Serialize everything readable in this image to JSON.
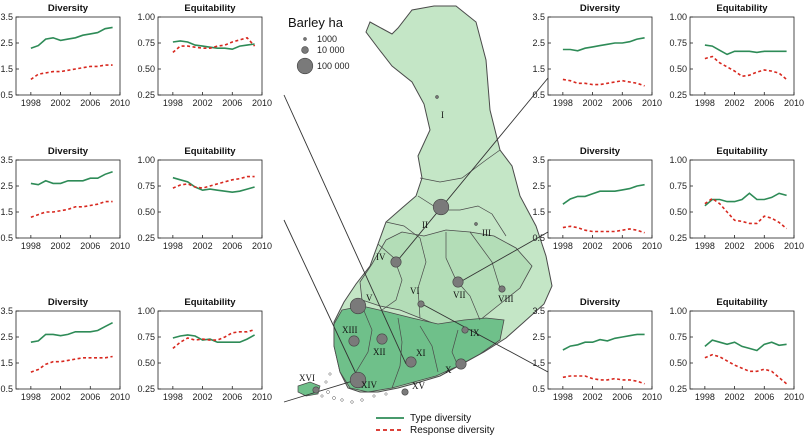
{
  "colors": {
    "type_line": "#2e8b57",
    "response_line": "#d8281f",
    "map_light": "#c4e6c6",
    "map_mid": "#9fd4a4",
    "map_dark": "#6fc08a",
    "map_border": "#4a4a4a",
    "dot": "#7a7a7a",
    "leader": "#333333"
  },
  "map": {
    "size_legend": {
      "title": "Barley ha",
      "items": [
        {
          "label": "1000"
        },
        {
          "label": "10 000"
        },
        {
          "label": "100 000"
        }
      ]
    },
    "regions": [
      {
        "label": "I",
        "dot": "tiny"
      },
      {
        "label": "II",
        "dot": "large"
      },
      {
        "label": "III",
        "dot": "tiny"
      },
      {
        "label": "IV",
        "dot": "medium"
      },
      {
        "label": "V",
        "dot": "large"
      },
      {
        "label": "VI",
        "dot": "small"
      },
      {
        "label": "VII",
        "dot": "medium"
      },
      {
        "label": "VIII",
        "dot": "small"
      },
      {
        "label": "IX",
        "dot": "small"
      },
      {
        "label": "X",
        "dot": "medium"
      },
      {
        "label": "XI",
        "dot": "medium"
      },
      {
        "label": "XII",
        "dot": "medium"
      },
      {
        "label": "XIII",
        "dot": "medium"
      },
      {
        "label": "XIV",
        "dot": "large"
      },
      {
        "label": "XV",
        "dot": "small"
      },
      {
        "label": "XVI",
        "dot": "small"
      }
    ]
  },
  "legend": {
    "type": "Type diversity",
    "response": "Response diversity"
  },
  "chart_data": [
    {
      "type": "line",
      "title": "Diversity",
      "ylim": [
        0.5,
        3.5
      ],
      "yticks": [
        "3.5",
        "2.5",
        "1.5",
        "0.5"
      ],
      "xticks": [
        "1998",
        "2002",
        "2006",
        "2010"
      ],
      "series": [
        {
          "x": [
            1998,
            1999,
            2000,
            2001,
            2002,
            2003,
            2004,
            2005,
            2006,
            2007,
            2008,
            2009
          ],
          "values": [
            2.3,
            2.4,
            2.65,
            2.7,
            2.6,
            2.65,
            2.7,
            2.8,
            2.85,
            2.9,
            3.05,
            3.1
          ]
        },
        {
          "x": [
            1998,
            1999,
            2000,
            2001,
            2002,
            2003,
            2004,
            2005,
            2006,
            2007,
            2008,
            2009
          ],
          "values": [
            1.1,
            1.3,
            1.35,
            1.4,
            1.4,
            1.45,
            1.5,
            1.55,
            1.6,
            1.6,
            1.65,
            1.65
          ]
        }
      ]
    },
    {
      "type": "line",
      "title": "Equitability",
      "ylim": [
        0.25,
        1.0
      ],
      "yticks": [
        "1.00",
        "0.75",
        "0.50",
        "0.25"
      ],
      "xticks": [
        "1998",
        "2002",
        "2006",
        "2010"
      ],
      "series": [
        {
          "x": [
            1998,
            1999,
            2000,
            2001,
            2002,
            2003,
            2004,
            2005,
            2006,
            2007,
            2008,
            2009
          ],
          "values": [
            0.76,
            0.77,
            0.76,
            0.73,
            0.72,
            0.71,
            0.7,
            0.7,
            0.69,
            0.72,
            0.73,
            0.74
          ]
        },
        {
          "x": [
            1998,
            1999,
            2000,
            2001,
            2002,
            2003,
            2004,
            2005,
            2006,
            2007,
            2008,
            2009
          ],
          "values": [
            0.66,
            0.72,
            0.72,
            0.71,
            0.7,
            0.7,
            0.72,
            0.73,
            0.76,
            0.78,
            0.8,
            0.72
          ]
        }
      ]
    },
    {
      "type": "line",
      "title": "Diversity",
      "ylim": [
        0.5,
        3.5
      ],
      "yticks": [
        "3.5",
        "2.5",
        "1.5",
        "0.5"
      ],
      "xticks": [
        "1998",
        "2002",
        "2006",
        "2010"
      ],
      "series": [
        {
          "x": [
            1998,
            1999,
            2000,
            2001,
            2002,
            2003,
            2004,
            2005,
            2006,
            2007,
            2008,
            2009
          ],
          "values": [
            2.6,
            2.55,
            2.7,
            2.6,
            2.6,
            2.7,
            2.7,
            2.7,
            2.8,
            2.8,
            2.95,
            3.05
          ]
        },
        {
          "x": [
            1998,
            1999,
            2000,
            2001,
            2002,
            2003,
            2004,
            2005,
            2006,
            2007,
            2008,
            2009
          ],
          "values": [
            1.3,
            1.4,
            1.5,
            1.5,
            1.55,
            1.6,
            1.7,
            1.7,
            1.75,
            1.8,
            1.9,
            1.9
          ]
        }
      ]
    },
    {
      "type": "line",
      "title": "Equitability",
      "ylim": [
        0.25,
        1.0
      ],
      "yticks": [
        "1.00",
        "0.75",
        "0.50",
        "0.25"
      ],
      "xticks": [
        "1998",
        "2002",
        "2006",
        "2010"
      ],
      "series": [
        {
          "x": [
            1998,
            1999,
            2000,
            2001,
            2002,
            2003,
            2004,
            2005,
            2006,
            2007,
            2008,
            2009
          ],
          "values": [
            0.83,
            0.81,
            0.79,
            0.74,
            0.71,
            0.72,
            0.71,
            0.7,
            0.69,
            0.7,
            0.72,
            0.74
          ]
        },
        {
          "x": [
            1998,
            1999,
            2000,
            2001,
            2002,
            2003,
            2004,
            2005,
            2006,
            2007,
            2008,
            2009
          ],
          "values": [
            0.73,
            0.76,
            0.77,
            0.74,
            0.73,
            0.75,
            0.77,
            0.79,
            0.81,
            0.82,
            0.84,
            0.84
          ]
        }
      ]
    },
    {
      "type": "line",
      "title": "Diversity",
      "ylim": [
        0.5,
        3.5
      ],
      "yticks": [
        "3.5",
        "2.5",
        "1.5",
        "0.5"
      ],
      "xticks": [
        "1998",
        "2002",
        "2006",
        "2010"
      ],
      "series": [
        {
          "x": [
            1998,
            1999,
            2000,
            2001,
            2002,
            2003,
            2004,
            2005,
            2006,
            2007,
            2008,
            2009
          ],
          "values": [
            2.3,
            2.35,
            2.6,
            2.6,
            2.55,
            2.6,
            2.7,
            2.7,
            2.7,
            2.75,
            2.9,
            3.05
          ]
        },
        {
          "x": [
            1998,
            1999,
            2000,
            2001,
            2002,
            2003,
            2004,
            2005,
            2006,
            2007,
            2008,
            2009
          ],
          "values": [
            1.15,
            1.25,
            1.45,
            1.55,
            1.55,
            1.6,
            1.65,
            1.7,
            1.7,
            1.7,
            1.7,
            1.75
          ]
        }
      ]
    },
    {
      "type": "line",
      "title": "Equitability",
      "ylim": [
        0.25,
        1.0
      ],
      "yticks": [
        "1.00",
        "0.75",
        "0.50",
        "0.25"
      ],
      "xticks": [
        "1998",
        "2002",
        "2006",
        "2010"
      ],
      "series": [
        {
          "x": [
            1998,
            1999,
            2000,
            2001,
            2002,
            2003,
            2004,
            2005,
            2006,
            2007,
            2008,
            2009
          ],
          "values": [
            0.74,
            0.76,
            0.77,
            0.76,
            0.72,
            0.73,
            0.7,
            0.7,
            0.7,
            0.7,
            0.73,
            0.77
          ]
        },
        {
          "x": [
            1998,
            1999,
            2000,
            2001,
            2002,
            2003,
            2004,
            2005,
            2006,
            2007,
            2008,
            2009
          ],
          "values": [
            0.64,
            0.7,
            0.74,
            0.72,
            0.73,
            0.72,
            0.72,
            0.75,
            0.79,
            0.8,
            0.8,
            0.82
          ]
        }
      ]
    },
    {
      "type": "line",
      "title": "Diversity",
      "ylim": [
        0.5,
        3.5
      ],
      "yticks": [
        "3.5",
        "2.5",
        "1.5",
        "0.5"
      ],
      "xticks": [
        "1998",
        "2002",
        "2006",
        "2010"
      ],
      "series": [
        {
          "x": [
            1998,
            1999,
            2000,
            2001,
            2002,
            2003,
            2004,
            2005,
            2006,
            2007,
            2008,
            2009
          ],
          "values": [
            2.25,
            2.25,
            2.2,
            2.3,
            2.35,
            2.4,
            2.45,
            2.5,
            2.5,
            2.55,
            2.65,
            2.7
          ]
        },
        {
          "x": [
            1998,
            1999,
            2000,
            2001,
            2002,
            2003,
            2004,
            2005,
            2006,
            2007,
            2008,
            2009
          ],
          "values": [
            1.1,
            1.05,
            0.95,
            0.95,
            0.9,
            0.9,
            0.95,
            1.0,
            1.05,
            1.0,
            0.95,
            0.85
          ]
        }
      ]
    },
    {
      "type": "line",
      "title": "Equitability",
      "ylim": [
        0.25,
        1.0
      ],
      "yticks": [
        "1.00",
        "0.75",
        "0.50",
        "0.25"
      ],
      "xticks": [
        "1998",
        "2002",
        "2006",
        "2010"
      ],
      "series": [
        {
          "x": [
            1998,
            1999,
            2000,
            2001,
            2002,
            2003,
            2004,
            2005,
            2006,
            2007,
            2008,
            2009
          ],
          "values": [
            0.73,
            0.72,
            0.68,
            0.64,
            0.67,
            0.67,
            0.67,
            0.66,
            0.67,
            0.67,
            0.67,
            0.67
          ]
        },
        {
          "x": [
            1998,
            1999,
            2000,
            2001,
            2002,
            2003,
            2004,
            2005,
            2006,
            2007,
            2008,
            2009
          ],
          "values": [
            0.6,
            0.62,
            0.56,
            0.52,
            0.48,
            0.43,
            0.44,
            0.47,
            0.49,
            0.48,
            0.46,
            0.4
          ]
        }
      ]
    },
    {
      "type": "line",
      "title": "Diversity",
      "ylim": [
        0.5,
        3.5
      ],
      "yticks": [
        "3.5",
        "2.5",
        "1.5",
        "0.5"
      ],
      "xticks": [
        "1998",
        "2002",
        "2006",
        "2010"
      ],
      "series": [
        {
          "x": [
            1998,
            1999,
            2000,
            2001,
            2002,
            2003,
            2004,
            2005,
            2006,
            2007,
            2008,
            2009
          ],
          "values": [
            1.8,
            2.0,
            2.1,
            2.1,
            2.2,
            2.3,
            2.3,
            2.3,
            2.35,
            2.4,
            2.5,
            2.55
          ]
        },
        {
          "x": [
            1998,
            1999,
            2000,
            2001,
            2002,
            2003,
            2004,
            2005,
            2006,
            2007,
            2008,
            2009
          ],
          "values": [
            0.9,
            0.95,
            0.9,
            0.8,
            0.75,
            0.75,
            0.75,
            0.75,
            0.8,
            0.85,
            0.8,
            0.7
          ]
        }
      ]
    },
    {
      "type": "line",
      "title": "Equitability",
      "ylim": [
        0.25,
        1.0
      ],
      "yticks": [
        "1.00",
        "0.75",
        "0.50",
        "0.25"
      ],
      "xticks": [
        "1998",
        "2002",
        "2006",
        "2010"
      ],
      "series": [
        {
          "x": [
            1998,
            1999,
            2000,
            2001,
            2002,
            2003,
            2004,
            2005,
            2006,
            2007,
            2008,
            2009
          ],
          "values": [
            0.56,
            0.62,
            0.62,
            0.6,
            0.6,
            0.62,
            0.68,
            0.62,
            0.62,
            0.64,
            0.68,
            0.66
          ]
        },
        {
          "x": [
            1998,
            1999,
            2000,
            2001,
            2002,
            2003,
            2004,
            2005,
            2006,
            2007,
            2008,
            2009
          ],
          "values": [
            0.58,
            0.63,
            0.58,
            0.5,
            0.42,
            0.41,
            0.39,
            0.39,
            0.46,
            0.44,
            0.4,
            0.34
          ]
        }
      ]
    },
    {
      "type": "line",
      "title": "Diversity",
      "ylim": [
        0.5,
        3.5
      ],
      "yticks": [
        "3.5",
        "2.5",
        "1.5",
        "0.5"
      ],
      "xticks": [
        "1998",
        "2002",
        "2006",
        "2010"
      ],
      "series": [
        {
          "x": [
            1998,
            1999,
            2000,
            2001,
            2002,
            2003,
            2004,
            2005,
            2006,
            2007,
            2008,
            2009
          ],
          "values": [
            2.0,
            2.15,
            2.2,
            2.3,
            2.3,
            2.4,
            2.35,
            2.45,
            2.5,
            2.55,
            2.6,
            2.6
          ]
        },
        {
          "x": [
            1998,
            1999,
            2000,
            2001,
            2002,
            2003,
            2004,
            2005,
            2006,
            2007,
            2008,
            2009
          ],
          "values": [
            0.95,
            1.0,
            1.0,
            1.0,
            0.9,
            0.85,
            0.85,
            0.9,
            0.85,
            0.85,
            0.8,
            0.7
          ]
        }
      ]
    },
    {
      "type": "line",
      "title": "Equitability",
      "ylim": [
        0.25,
        1.0
      ],
      "yticks": [
        "1.00",
        "0.75",
        "0.50",
        "0.25"
      ],
      "xticks": [
        "1998",
        "2002",
        "2006",
        "2010"
      ],
      "series": [
        {
          "x": [
            1998,
            1999,
            2000,
            2001,
            2002,
            2003,
            2004,
            2005,
            2006,
            2007,
            2008,
            2009
          ],
          "values": [
            0.66,
            0.72,
            0.7,
            0.68,
            0.7,
            0.66,
            0.64,
            0.62,
            0.68,
            0.7,
            0.67,
            0.68
          ]
        },
        {
          "x": [
            1998,
            1999,
            2000,
            2001,
            2002,
            2003,
            2004,
            2005,
            2006,
            2007,
            2008,
            2009
          ],
          "values": [
            0.55,
            0.58,
            0.56,
            0.52,
            0.48,
            0.45,
            0.42,
            0.42,
            0.44,
            0.42,
            0.36,
            0.3
          ]
        }
      ]
    }
  ]
}
